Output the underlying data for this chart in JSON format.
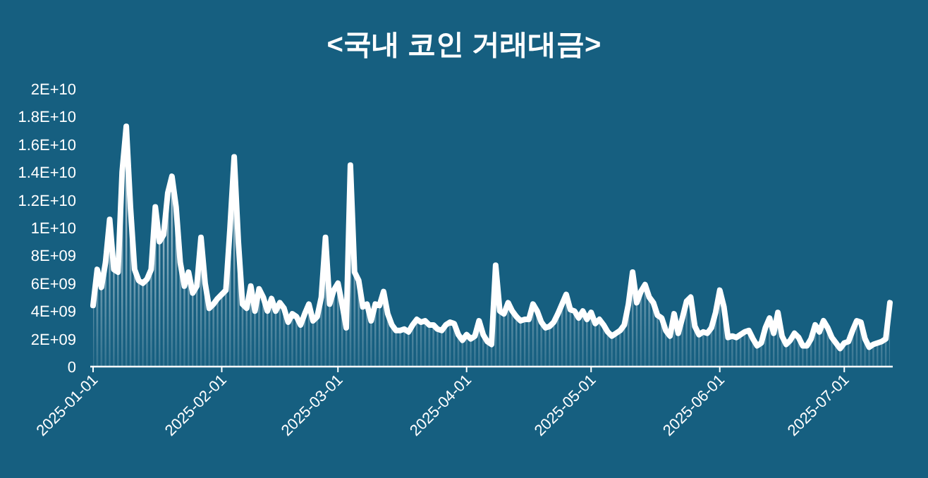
{
  "chart_data": {
    "type": "area",
    "title": "<국내 코인 거래대금>",
    "x": [
      "2025-01-01",
      "2025-01-02",
      "2025-01-03",
      "2025-01-04",
      "2025-01-05",
      "2025-01-06",
      "2025-01-07",
      "2025-01-08",
      "2025-01-09",
      "2025-01-10",
      "2025-01-11",
      "2025-01-12",
      "2025-01-13",
      "2025-01-14",
      "2025-01-15",
      "2025-01-16",
      "2025-01-17",
      "2025-01-18",
      "2025-01-19",
      "2025-01-20",
      "2025-01-21",
      "2025-01-22",
      "2025-01-23",
      "2025-01-24",
      "2025-01-25",
      "2025-01-26",
      "2025-01-27",
      "2025-01-28",
      "2025-01-29",
      "2025-01-30",
      "2025-01-31",
      "2025-02-01",
      "2025-02-02",
      "2025-02-03",
      "2025-02-04",
      "2025-02-05",
      "2025-02-06",
      "2025-02-07",
      "2025-02-08",
      "2025-02-09",
      "2025-02-10",
      "2025-02-11",
      "2025-02-12",
      "2025-02-13",
      "2025-02-14",
      "2025-02-15",
      "2025-02-16",
      "2025-02-17",
      "2025-02-18",
      "2025-02-19",
      "2025-02-20",
      "2025-02-21",
      "2025-02-22",
      "2025-02-23",
      "2025-02-24",
      "2025-02-25",
      "2025-02-26",
      "2025-02-27",
      "2025-02-28",
      "2025-03-01",
      "2025-03-02",
      "2025-03-03",
      "2025-03-04",
      "2025-03-05",
      "2025-03-06",
      "2025-03-07",
      "2025-03-08",
      "2025-03-09",
      "2025-03-10",
      "2025-03-11",
      "2025-03-12",
      "2025-03-13",
      "2025-03-14",
      "2025-03-15",
      "2025-03-16",
      "2025-03-17",
      "2025-03-18",
      "2025-03-19",
      "2025-03-20",
      "2025-03-21",
      "2025-03-22",
      "2025-03-23",
      "2025-03-24",
      "2025-03-25",
      "2025-03-26",
      "2025-03-27",
      "2025-03-28",
      "2025-03-29",
      "2025-03-30",
      "2025-03-31",
      "2025-04-01",
      "2025-04-02",
      "2025-04-03",
      "2025-04-04",
      "2025-04-05",
      "2025-04-06",
      "2025-04-07",
      "2025-04-08",
      "2025-04-09",
      "2025-04-10",
      "2025-04-11",
      "2025-04-12",
      "2025-04-13",
      "2025-04-14",
      "2025-04-15",
      "2025-04-16",
      "2025-04-17",
      "2025-04-18",
      "2025-04-19",
      "2025-04-20",
      "2025-04-21",
      "2025-04-22",
      "2025-04-23",
      "2025-04-24",
      "2025-04-25",
      "2025-04-26",
      "2025-04-27",
      "2025-04-28",
      "2025-04-29",
      "2025-04-30",
      "2025-05-01",
      "2025-05-02",
      "2025-05-03",
      "2025-05-04",
      "2025-05-05",
      "2025-05-06",
      "2025-05-07",
      "2025-05-08",
      "2025-05-09",
      "2025-05-10",
      "2025-05-11",
      "2025-05-12",
      "2025-05-13",
      "2025-05-14",
      "2025-05-15",
      "2025-05-16",
      "2025-05-17",
      "2025-05-18",
      "2025-05-19",
      "2025-05-20",
      "2025-05-21",
      "2025-05-22",
      "2025-05-23",
      "2025-05-24",
      "2025-05-25",
      "2025-05-26",
      "2025-05-27",
      "2025-05-28",
      "2025-05-29",
      "2025-05-30",
      "2025-05-31",
      "2025-06-01",
      "2025-06-02",
      "2025-06-03",
      "2025-06-04",
      "2025-06-05",
      "2025-06-06",
      "2025-06-07",
      "2025-06-08",
      "2025-06-09",
      "2025-06-10",
      "2025-06-11",
      "2025-06-12",
      "2025-06-13",
      "2025-06-14",
      "2025-06-15",
      "2025-06-16",
      "2025-06-17",
      "2025-06-18",
      "2025-06-19",
      "2025-06-20",
      "2025-06-21",
      "2025-06-22",
      "2025-06-23",
      "2025-06-24",
      "2025-06-25",
      "2025-06-26",
      "2025-06-27",
      "2025-06-28",
      "2025-06-29",
      "2025-06-30",
      "2025-07-01",
      "2025-07-02",
      "2025-07-03",
      "2025-07-04",
      "2025-07-05",
      "2025-07-06",
      "2025-07-07",
      "2025-07-08",
      "2025-07-09",
      "2025-07-10",
      "2025-07-11",
      "2025-07-12"
    ],
    "series": [
      {
        "color": "#ffffff",
        "values": [
          4400000000.0,
          7000000000.0,
          5700000000.0,
          7500000000.0,
          10600000000.0,
          7000000000.0,
          6800000000.0,
          14000000000.0,
          17300000000.0,
          11500000000.0,
          7000000000.0,
          6200000000.0,
          6000000000.0,
          6300000000.0,
          7000000000.0,
          11500000000.0,
          9000000000.0,
          9500000000.0,
          12500000000.0,
          13700000000.0,
          11500000000.0,
          7500000000.0,
          5800000000.0,
          6800000000.0,
          5300000000.0,
          5800000000.0,
          9300000000.0,
          6000000000.0,
          4200000000.0,
          4500000000.0,
          4900000000.0,
          5200000000.0,
          5500000000.0,
          10000000000.0,
          15100000000.0,
          9000000000.0,
          4500000000.0,
          4200000000.0,
          5800000000.0,
          4000000000.0,
          5600000000.0,
          5000000000.0,
          4000000000.0,
          4900000000.0,
          4000000000.0,
          4600000000.0,
          4200000000.0,
          3200000000.0,
          3800000000.0,
          3600000000.0,
          3000000000.0,
          3800000000.0,
          4500000000.0,
          3300000000.0,
          3600000000.0,
          5000000000.0,
          9300000000.0,
          4500000000.0,
          5500000000.0,
          6000000000.0,
          4500000000.0,
          2800000000.0,
          14500000000.0,
          6800000000.0,
          6200000000.0,
          4300000000.0,
          4500000000.0,
          3300000000.0,
          4500000000.0,
          4400000000.0,
          5400000000.0,
          3800000000.0,
          3000000000.0,
          2600000000.0,
          2600000000.0,
          2700000000.0,
          2500000000.0,
          3000000000.0,
          3400000000.0,
          3200000000.0,
          3300000000.0,
          3000000000.0,
          3000000000.0,
          2700000000.0,
          2600000000.0,
          3000000000.0,
          3200000000.0,
          3100000000.0,
          2300000000.0,
          1900000000.0,
          2300000000.0,
          2000000000.0,
          2200000000.0,
          3300000000.0,
          2300000000.0,
          1800000000.0,
          1600000000.0,
          7300000000.0,
          4000000000.0,
          3800000000.0,
          4600000000.0,
          4000000000.0,
          3600000000.0,
          3300000000.0,
          3400000000.0,
          3400000000.0,
          4500000000.0,
          4000000000.0,
          3200000000.0,
          2800000000.0,
          2900000000.0,
          3200000000.0,
          3800000000.0,
          4500000000.0,
          5200000000.0,
          4100000000.0,
          4000000000.0,
          3500000000.0,
          4000000000.0,
          3400000000.0,
          3900000000.0,
          3100000000.0,
          3400000000.0,
          3000000000.0,
          2500000000.0,
          2200000000.0,
          2400000000.0,
          2600000000.0,
          3000000000.0,
          4500000000.0,
          6800000000.0,
          4600000000.0,
          5400000000.0,
          5900000000.0,
          5000000000.0,
          4600000000.0,
          3700000000.0,
          3500000000.0,
          2600000000.0,
          2200000000.0,
          3800000000.0,
          2400000000.0,
          3500000000.0,
          4700000000.0,
          5000000000.0,
          2900000000.0,
          2300000000.0,
          2500000000.0,
          2400000000.0,
          2800000000.0,
          3900000000.0,
          5500000000.0,
          4300000000.0,
          2100000000.0,
          2200000000.0,
          2100000000.0,
          2300000000.0,
          2500000000.0,
          2600000000.0,
          2000000000.0,
          1500000000.0,
          1700000000.0,
          2800000000.0,
          3500000000.0,
          2400000000.0,
          3900000000.0,
          2200000000.0,
          1600000000.0,
          1900000000.0,
          2400000000.0,
          2100000000.0,
          1500000000.0,
          1500000000.0,
          2000000000.0,
          3000000000.0,
          2500000000.0,
          3300000000.0,
          2800000000.0,
          2100000000.0,
          1700000000.0,
          1300000000.0,
          1700000000.0,
          1800000000.0,
          2600000000.0,
          3300000000.0,
          3200000000.0,
          2000000000.0,
          1400000000.0,
          1600000000.0,
          1700000000.0,
          1800000000.0,
          2000000000.0,
          4600000000.0
        ]
      }
    ],
    "xlim": [
      "2025-01-01",
      "2025-07-12"
    ],
    "xticks": [
      "2025-01-01",
      "2025-02-01",
      "2025-03-01",
      "2025-04-01",
      "2025-05-01",
      "2025-06-01",
      "2025-07-01"
    ],
    "ylim": [
      0,
      20000000000.0
    ],
    "yticks": [
      0,
      {
        "value": 2000000000.0,
        "label": "2E+09"
      },
      {
        "value": 4000000000.0,
        "label": "4E+09"
      },
      {
        "value": 6000000000.0,
        "label": "6E+09"
      },
      {
        "value": 8000000000.0,
        "label": "8E+09"
      },
      {
        "value": 10000000000.0,
        "label": "1E+10"
      },
      {
        "value": 12000000000.0,
        "label": "1.2E+10"
      },
      {
        "value": 14000000000.0,
        "label": "1.4E+10"
      },
      {
        "value": 16000000000.0,
        "label": "1.6E+10"
      },
      {
        "value": 18000000000.0,
        "label": "1.8E+10"
      },
      {
        "value": 20000000000.0,
        "label": "2E+10"
      }
    ]
  }
}
